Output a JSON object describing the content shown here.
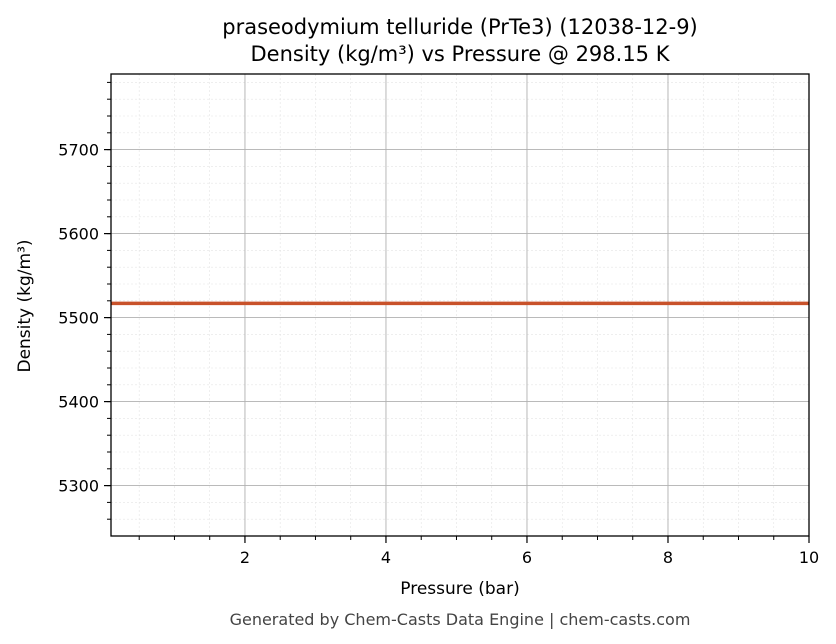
{
  "chart_data": {
    "type": "line",
    "title": "praseodymium telluride (PrTe3) (12038-12-9)",
    "subtitle": "Density (kg/m³) vs Pressure @ 298.15 K",
    "xlabel": "Pressure (bar)",
    "ylabel": "Density (kg/m³)",
    "xlim": [
      0.1,
      10
    ],
    "ylim": [
      5240,
      5790
    ],
    "xticks": [
      2,
      4,
      6,
      8,
      10
    ],
    "yticks": [
      5300,
      5400,
      5500,
      5600,
      5700
    ],
    "grid": true,
    "line_color": "#c8522a",
    "series": [
      {
        "x": [
          0.1,
          10
        ],
        "y": [
          5517,
          5517
        ]
      }
    ]
  },
  "footer": "Generated by Chem-Casts Data Engine | chem-casts.com"
}
